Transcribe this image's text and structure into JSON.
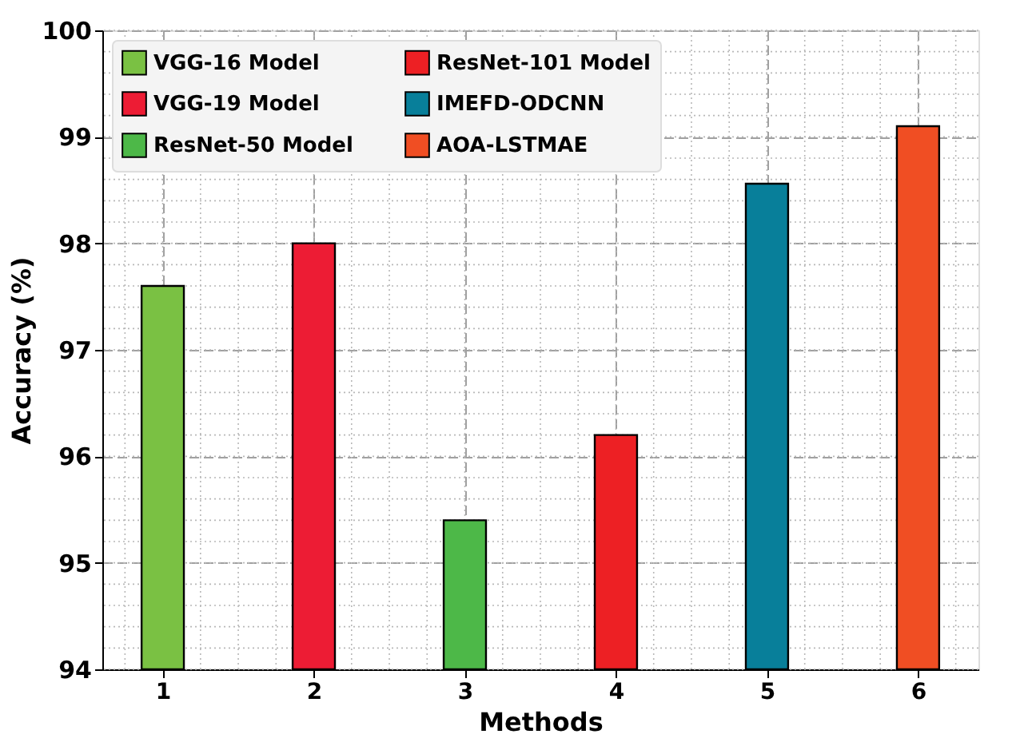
{
  "chart_data": {
    "type": "bar",
    "xlabel": "Methods",
    "ylabel": "Accuracy (%)",
    "series": [
      {
        "name": "VGG-16 Model",
        "color": "#7ac143",
        "x": [
          1
        ],
        "values": [
          97.6
        ]
      },
      {
        "name": "VGG-19 Model",
        "color": "#ed1c34",
        "x": [
          2
        ],
        "values": [
          98.0
        ]
      },
      {
        "name": "ResNet-50 Model",
        "color": "#4db848",
        "x": [
          3
        ],
        "values": [
          95.4
        ]
      },
      {
        "name": "ResNet-101 Model",
        "color": "#ed2024",
        "x": [
          4
        ],
        "values": [
          96.2
        ]
      },
      {
        "name": "IMEFD-ODCNN",
        "color": "#087f9a",
        "x": [
          5
        ],
        "values": [
          98.56
        ]
      },
      {
        "name": "AOA-LSTMAE",
        "color": "#f04e23",
        "x": [
          6
        ],
        "values": [
          99.1
        ]
      }
    ],
    "xlim": [
      0.6,
      6.4
    ],
    "xticks": [
      1,
      2,
      3,
      4,
      5,
      6
    ],
    "ylim": [
      94,
      100
    ],
    "yticks": [
      94,
      95,
      96,
      97,
      98,
      99,
      100
    ],
    "grid": true,
    "legend": "top left"
  }
}
